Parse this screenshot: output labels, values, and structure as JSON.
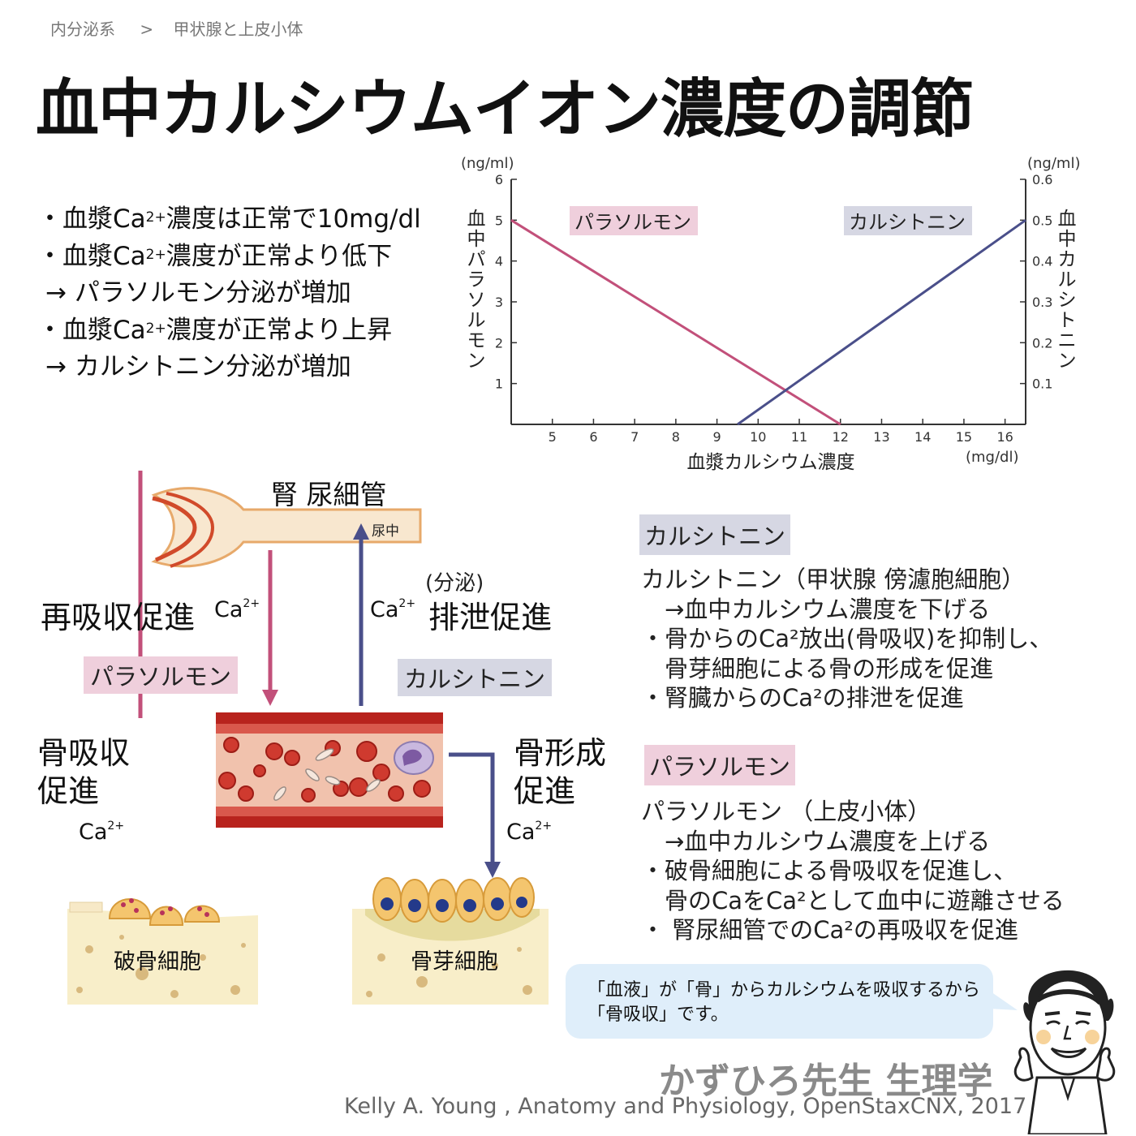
{
  "breadcrumb": {
    "parent": "内分泌系",
    "separator": ">",
    "current": "甲状腺と上皮小体"
  },
  "title": "血中カルシウムイオン濃度の調節",
  "bullets": [
    {
      "dot": "・",
      "pre": "血漿Ca",
      "sup": "2+",
      "post": "濃度は正常で10mg/dl"
    },
    {
      "dot": "・",
      "pre": "血漿Ca",
      "sup": "2+",
      "post": "濃度が正常より低下"
    },
    {
      "arrow": "→ パラソルモン分泌が増加"
    },
    {
      "dot": "・",
      "pre": "血漿Ca",
      "sup": "2+",
      "post": "濃度が正常より上昇"
    },
    {
      "arrow": "→ カルシトニン分泌が増加"
    }
  ],
  "chart_data": {
    "type": "line",
    "xlabel": "血漿カルシウム濃度",
    "xunit": "(mg/dl)",
    "x_ticks": [
      5,
      6,
      7,
      8,
      9,
      10,
      11,
      12,
      13,
      14,
      15,
      16
    ],
    "xlim": [
      4,
      16.5
    ],
    "left_axis": {
      "label": "血中パラソルモン",
      "unit": "(ng/ml)",
      "ticks": [
        1,
        2,
        3,
        4,
        5,
        6
      ],
      "ylim": [
        0,
        6
      ]
    },
    "right_axis": {
      "label": "血中カルシトニン",
      "unit": "(ng/ml)",
      "ticks": [
        0.1,
        0.2,
        0.3,
        0.4,
        0.5,
        0.6
      ],
      "ylim": [
        0,
        0.6
      ]
    },
    "series": [
      {
        "name": "パラソルモン",
        "axis": "left",
        "color": "#c2507a",
        "x": [
          4,
          12
        ],
        "y": [
          5,
          0
        ]
      },
      {
        "name": "カルシトニン",
        "axis": "right",
        "color": "#4a4f8a",
        "x": [
          9.5,
          16.5
        ],
        "y": [
          0,
          0.5
        ]
      }
    ]
  },
  "diagram": {
    "kidney_label": "腎 尿細管",
    "urine_label": "尿中",
    "reabsorb_label": "再吸収促進",
    "ca_base": "Ca",
    "ca_sup": "2+",
    "secretion_paren": "(分泌)",
    "excretion_label": "排泄促進",
    "pth_tag": "パラソルモン",
    "ct_tag": "カルシトニン",
    "bone_resorb": [
      "骨吸収",
      "促進"
    ],
    "bone_form": [
      "骨形成",
      "促進"
    ],
    "osteoclast_label": "破骨細胞",
    "osteoblast_label": "骨芽細胞"
  },
  "calcitonin_box": {
    "tag": "カルシトニン",
    "lines": [
      "カルシトニン（甲状腺 傍濾胞細胞）",
      "　→血中カルシウム濃度を下げる",
      "・骨からのCa²放出(骨吸収)を抑制し、",
      "　骨芽細胞による骨の形成を促進",
      "・腎臓からのCa²の排泄を促進"
    ]
  },
  "parathormone_box": {
    "tag": "パラソルモン",
    "lines": [
      "パラソルモン （上皮小体）",
      "　→血中カルシウム濃度を上げる",
      "・破骨細胞による骨吸収を促進し、",
      "　骨のCaをCa²として血中に遊離させる",
      "・ 腎尿細管でのCa²の再吸収を促進"
    ]
  },
  "speech_bubble": [
    "「血液」が「骨」からカルシウムを吸収するから",
    "「骨吸収」です。"
  ],
  "brand": "かずひろ先生 生理学",
  "credit": "Kelly A. Young , Anatomy and Physiology, OpenStaxCNX, 2017",
  "colors": {
    "pth": "#c2507a",
    "ct": "#4a4f8a",
    "pth_bg": "#efcfdc",
    "ct_bg": "#d6d7e3"
  }
}
